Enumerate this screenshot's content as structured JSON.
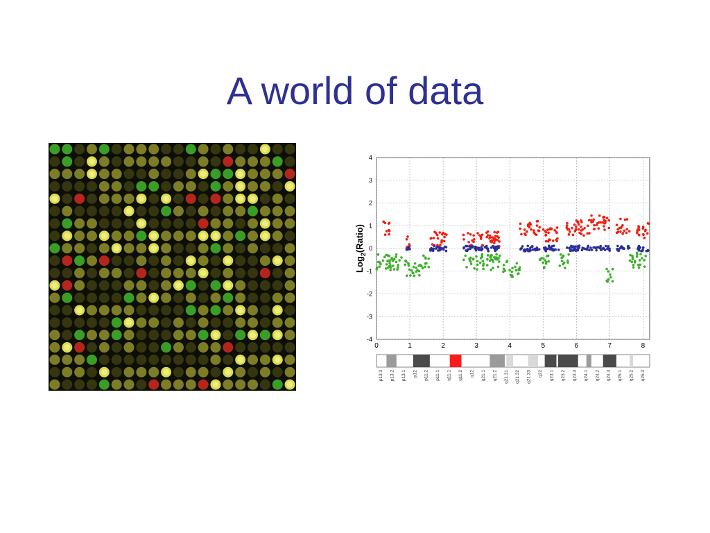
{
  "slide": {
    "title": "A world of data"
  },
  "microarray": {
    "rows": 20,
    "cols": 20,
    "colors": {
      "background": "#0d0f06",
      "dim": "#3a3a12",
      "yellow": "#f2f25a",
      "olive": "#8a8a2a",
      "green": "#3fae2a",
      "red": "#c8281e"
    }
  },
  "chart_data": {
    "type": "scatter",
    "title": "",
    "xlabel": "",
    "ylabel": "Log2(Ratio)",
    "xlim": [
      0,
      8.2
    ],
    "ylim": [
      -4,
      4
    ],
    "x_ticks": [
      "0",
      "1",
      "2",
      "3",
      "4",
      "5",
      "6",
      "7",
      "8"
    ],
    "y_ticks": [
      "4",
      "3",
      "2",
      "1",
      "0",
      "-1",
      "-2",
      "-3",
      "-4"
    ],
    "grid": true,
    "series": [
      {
        "color": "#f21f12",
        "segments": [
          [
            0.2,
            0.4,
            0.9
          ],
          [
            0.9,
            1.0,
            0.2
          ],
          [
            1.6,
            2.1,
            0.4
          ],
          [
            2.6,
            3.7,
            0.4
          ],
          [
            4.3,
            4.9,
            0.9
          ],
          [
            5.0,
            5.5,
            0.6
          ],
          [
            5.7,
            6.4,
            0.9
          ],
          [
            6.4,
            7.0,
            1.1
          ],
          [
            7.2,
            7.6,
            1.0
          ],
          [
            7.8,
            8.2,
            0.8
          ]
        ]
      },
      {
        "color": "#2b2f9a",
        "segments": [
          [
            0.9,
            1.0,
            0.0
          ],
          [
            1.6,
            2.1,
            0.0
          ],
          [
            2.6,
            3.7,
            0.0
          ],
          [
            4.3,
            4.9,
            0.0
          ],
          [
            5.0,
            5.5,
            0.0
          ],
          [
            5.7,
            6.4,
            0.0
          ],
          [
            6.4,
            7.0,
            0.0
          ],
          [
            7.2,
            7.6,
            0.0
          ],
          [
            7.8,
            8.2,
            0.0
          ]
        ]
      },
      {
        "color": "#3db02a",
        "segments": [
          [
            0.0,
            0.9,
            -0.6
          ],
          [
            0.9,
            1.4,
            -0.9
          ],
          [
            1.4,
            1.6,
            -0.6
          ],
          [
            2.6,
            3.7,
            -0.6
          ],
          [
            3.8,
            4.3,
            -0.9
          ],
          [
            4.9,
            5.2,
            -0.6
          ],
          [
            5.5,
            5.8,
            -0.6
          ],
          [
            6.9,
            7.1,
            -1.2
          ],
          [
            7.6,
            8.1,
            -0.5
          ]
        ]
      }
    ],
    "ideogram": {
      "bands": [
        "p13.3",
        "p13.2",
        "p13.1",
        "p12",
        "p11.2",
        "p11.1",
        "q11.1",
        "q11.2",
        "q12",
        "q21.1",
        "q21.2",
        "q21.31",
        "q21.32",
        "q21.33",
        "q22",
        "q23.1",
        "q23.2",
        "q23.3",
        "q24.1",
        "q24.2",
        "q24.3",
        "q25.1",
        "q25.2",
        "q25.3"
      ],
      "colors": {
        "white": "#ffffff",
        "light": "#d9d9d9",
        "grey": "#9b9b9b",
        "dark": "#4a4a4a",
        "centromere": "#ff1a1a"
      }
    }
  }
}
